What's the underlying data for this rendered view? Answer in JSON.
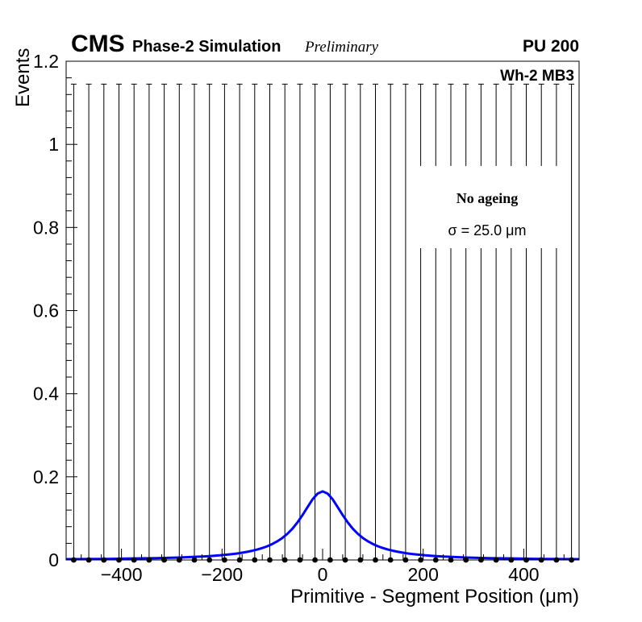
{
  "header": {
    "experiment": "CMS",
    "simulation": "Phase-2 Simulation",
    "preliminary": "Preliminary",
    "pileup": "PU 200"
  },
  "plot": {
    "region_label": "Wh-2 MB3"
  },
  "legend": {
    "line1": "No ageing",
    "line2": "σ = 25.0 μm"
  },
  "colors": {
    "fit_line": "#0000ff",
    "markers": "#000000",
    "frame": "#000000",
    "legend_bg": "#ffffff"
  },
  "chart_data": {
    "type": "scatter",
    "title": "",
    "xlabel": "Primitive - Segment Position (μm)",
    "ylabel": "Events",
    "grid": false,
    "x_axis": {
      "range": [
        -510,
        510
      ],
      "ticks": [
        {
          "value": -400,
          "label": "−400"
        },
        {
          "value": -200,
          "label": "−200"
        },
        {
          "value": 0,
          "label": "0"
        },
        {
          "value": 200,
          "label": "200"
        },
        {
          "value": 400,
          "label": "400"
        }
      ],
      "minor_step": 40
    },
    "y_axis": {
      "range": [
        0,
        1.2
      ],
      "ticks": [
        {
          "value": 0,
          "label": "0"
        },
        {
          "value": 0.2,
          "label": "0.2"
        },
        {
          "value": 0.4,
          "label": "0.4"
        },
        {
          "value": 0.6,
          "label": "0.6"
        },
        {
          "value": 0.8,
          "label": "0.8"
        },
        {
          "value": 1,
          "label": "1"
        },
        {
          "value": 1.2,
          "label": "1.2"
        }
      ],
      "minor_step": 0.04
    },
    "data_points": {
      "x": [
        -495,
        -465,
        -435,
        -405,
        -375,
        -345,
        -315,
        -285,
        -255,
        -225,
        -195,
        -165,
        -135,
        -105,
        -75,
        -45,
        -15,
        15,
        45,
        75,
        105,
        135,
        165,
        195,
        225,
        255,
        285,
        315,
        345,
        375,
        405,
        435,
        465,
        495
      ],
      "y": 0,
      "error_top": 1.145
    },
    "fit_curve": {
      "x": [
        -510,
        -480,
        -450,
        -420,
        -390,
        -360,
        -330,
        -300,
        -280,
        -260,
        -240,
        -220,
        -200,
        -190,
        -180,
        -170,
        -160,
        -150,
        -140,
        -130,
        -120,
        -110,
        -100,
        -90,
        -80,
        -70,
        -60,
        -50,
        -40,
        -30,
        -20,
        -10,
        0,
        10,
        20,
        30,
        40,
        50,
        60,
        70,
        80,
        90,
        100,
        110,
        120,
        130,
        140,
        150,
        160,
        170,
        180,
        190,
        200,
        220,
        240,
        260,
        280,
        300,
        330,
        360,
        390,
        420,
        450,
        480,
        510
      ],
      "y": [
        0.0019,
        0.0021,
        0.0024,
        0.0028,
        0.0032,
        0.0038,
        0.0045,
        0.0054,
        0.0061,
        0.0071,
        0.0082,
        0.0097,
        0.0116,
        0.0128,
        0.0141,
        0.0156,
        0.0174,
        0.0196,
        0.0221,
        0.0251,
        0.0287,
        0.033,
        0.0383,
        0.0449,
        0.053,
        0.063,
        0.0753,
        0.0903,
        0.1079,
        0.1272,
        0.1457,
        0.1597,
        0.165,
        0.1597,
        0.1457,
        0.1272,
        0.1079,
        0.0903,
        0.0753,
        0.063,
        0.053,
        0.0449,
        0.0383,
        0.033,
        0.0287,
        0.0251,
        0.0221,
        0.0196,
        0.0174,
        0.0156,
        0.0141,
        0.0128,
        0.0116,
        0.0097,
        0.0082,
        0.0071,
        0.0061,
        0.0054,
        0.0045,
        0.0038,
        0.0032,
        0.0028,
        0.0024,
        0.0021,
        0.0019
      ]
    }
  }
}
